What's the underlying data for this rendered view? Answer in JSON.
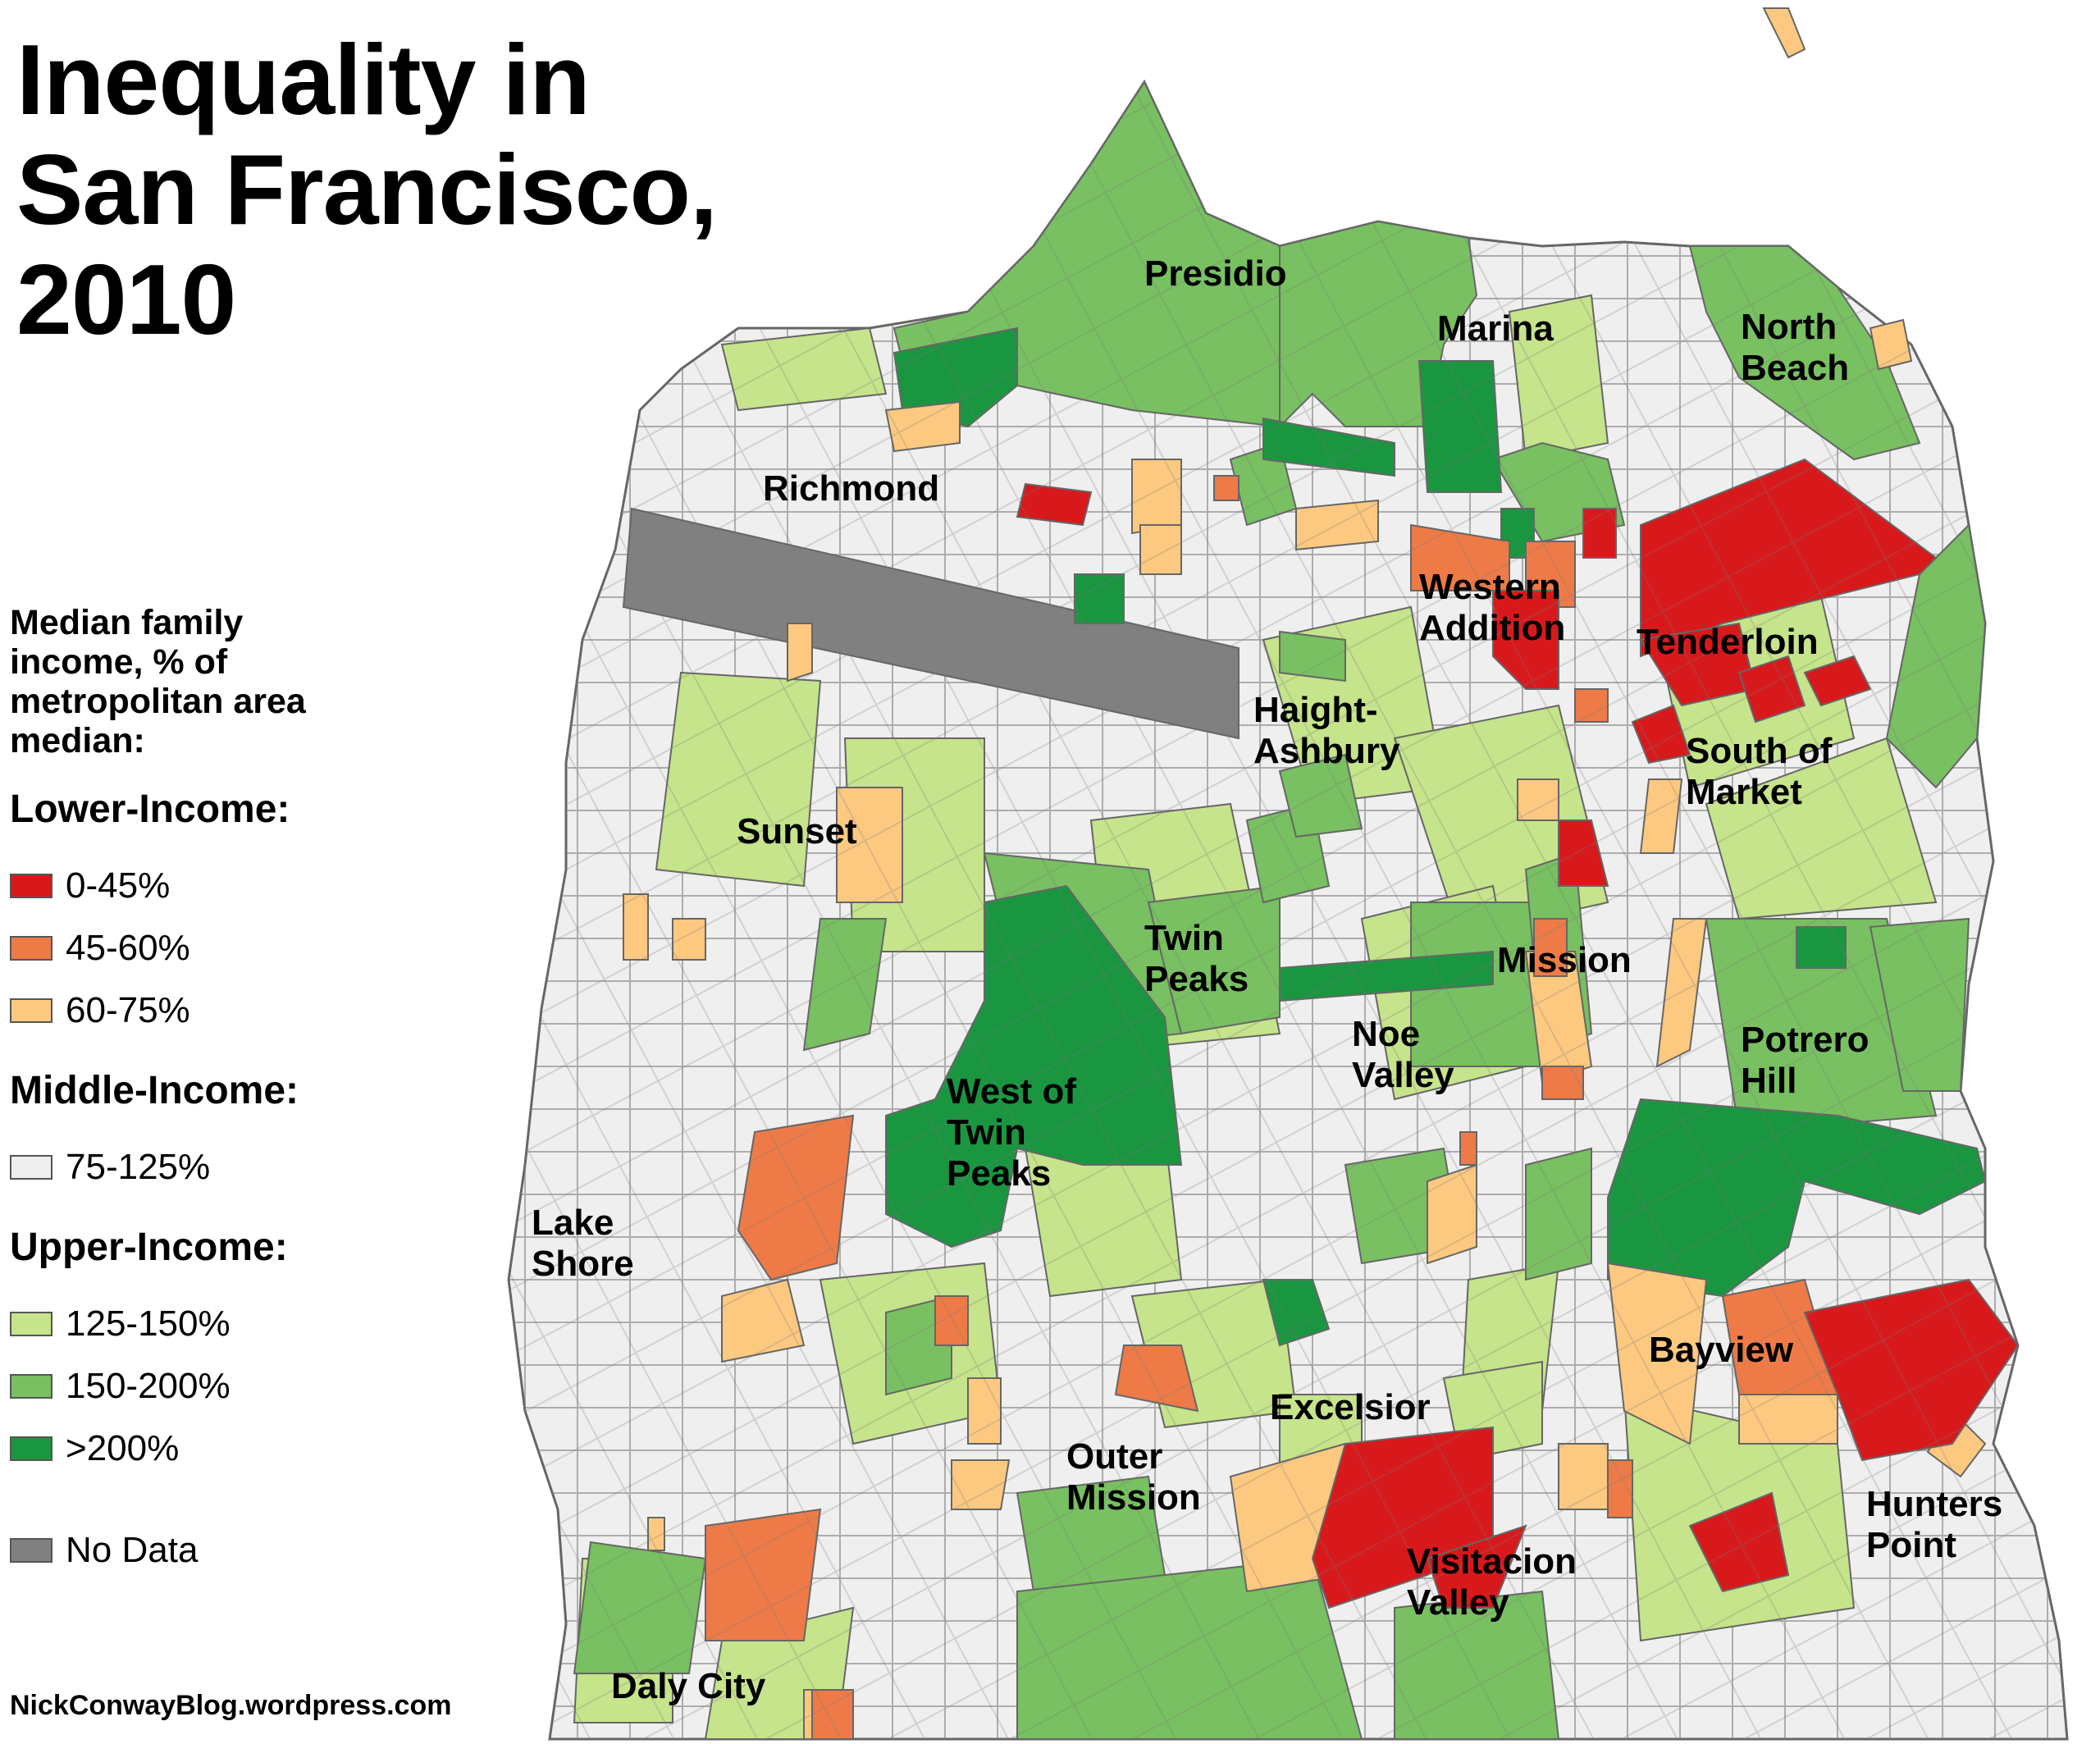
{
  "title_lines": [
    "Inequality in",
    "San Francisco,",
    "2010"
  ],
  "legend": {
    "heading_lines": [
      "Median family",
      "income, % of",
      "metropolitan area",
      "median:"
    ],
    "groups": [
      {
        "title": "Lower-Income:",
        "items": [
          {
            "label": "0-45%",
            "color": "#d7191c"
          },
          {
            "label": "45-60%",
            "color": "#ee7b47"
          },
          {
            "label": "60-75%",
            "color": "#fdc980"
          }
        ]
      },
      {
        "title": "Middle-Income:",
        "items": [
          {
            "label": "75-125%",
            "color": "#efefef"
          }
        ]
      },
      {
        "title": "Upper-Income:",
        "items": [
          {
            "label": "125-150%",
            "color": "#c6e48b"
          },
          {
            "label": "150-200%",
            "color": "#78c061"
          },
          {
            "label": ">200%",
            "color": "#1a9641"
          }
        ]
      }
    ],
    "no_data": {
      "label": "No Data",
      "color": "#808080"
    }
  },
  "neighborhoods": [
    {
      "name": "Presidio",
      "lines": [
        "Presidio"
      ]
    },
    {
      "name": "Marina",
      "lines": [
        "Marina"
      ]
    },
    {
      "name": "North Beach",
      "lines": [
        "North",
        "Beach"
      ]
    },
    {
      "name": "Richmond",
      "lines": [
        "Richmond"
      ]
    },
    {
      "name": "Western Addition",
      "lines": [
        "Western",
        "Addition"
      ]
    },
    {
      "name": "Tenderloin",
      "lines": [
        "Tenderloin"
      ]
    },
    {
      "name": "Haight-Ashbury",
      "lines": [
        "Haight-",
        "Ashbury"
      ]
    },
    {
      "name": "South of Market",
      "lines": [
        "South of",
        "Market"
      ]
    },
    {
      "name": "Sunset",
      "lines": [
        "Sunset"
      ]
    },
    {
      "name": "Twin Peaks",
      "lines": [
        "Twin",
        "Peaks"
      ]
    },
    {
      "name": "Mission",
      "lines": [
        "Mission"
      ]
    },
    {
      "name": "Noe Valley",
      "lines": [
        "Noe",
        "Valley"
      ]
    },
    {
      "name": "Potrero Hill",
      "lines": [
        "Potrero",
        "Hill"
      ]
    },
    {
      "name": "West of Twin Peaks",
      "lines": [
        "West of",
        "Twin",
        "Peaks"
      ]
    },
    {
      "name": "Lake Shore",
      "lines": [
        "Lake",
        "Shore"
      ]
    },
    {
      "name": "Bayview",
      "lines": [
        "Bayview"
      ]
    },
    {
      "name": "Excelsior",
      "lines": [
        "Excelsior"
      ]
    },
    {
      "name": "Outer Mission",
      "lines": [
        "Outer",
        "Mission"
      ]
    },
    {
      "name": "Hunters Point",
      "lines": [
        "Hunters",
        "Point"
      ]
    },
    {
      "name": "Visitacion Valley",
      "lines": [
        "Visitacion",
        "Valley"
      ]
    },
    {
      "name": "Daly City",
      "lines": [
        "Daly City"
      ]
    }
  ],
  "credit": "NickConwayBlog.wordpress.com"
}
